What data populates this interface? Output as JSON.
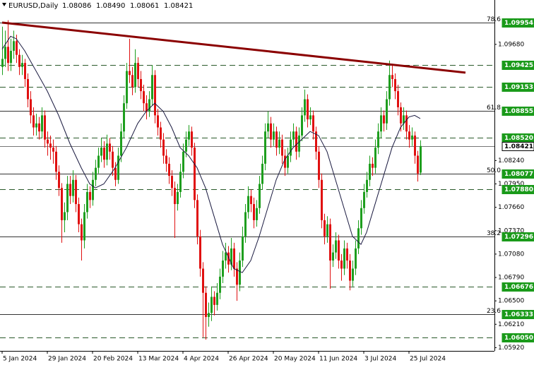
{
  "chart_data": {
    "type": "candlestick",
    "header": {
      "symbol": "EURUSD,Daily",
      "ohlc": [
        "1.08086",
        "1.08490",
        "1.08061",
        "1.08421"
      ]
    },
    "up_color": "#1e9e1e",
    "down_color": "#e01010",
    "ma_color": "#1a1a40",
    "trend_color": "#8b0000",
    "ylim": [
      1.0588,
      1.1023
    ],
    "xlim": [
      0,
      174
    ],
    "yticks": [
      {
        "value": 1.0968,
        "label": "1.09680"
      },
      {
        "value": 1.0824,
        "label": "1.08240"
      },
      {
        "value": 1.0795,
        "label": "1.07950"
      },
      {
        "value": 1.0766,
        "label": "1.07660"
      },
      {
        "value": 1.0737,
        "label": "1.07370"
      },
      {
        "value": 1.0708,
        "label": "1.07080"
      },
      {
        "value": 1.0679,
        "label": "1.06790"
      },
      {
        "value": 1.065,
        "label": "1.06500"
      },
      {
        "value": 1.0621,
        "label": "1.06210"
      },
      {
        "value": 1.0592,
        "label": "1.05920"
      }
    ],
    "xticks": [
      {
        "value": 0,
        "label": "5 Jan 2024"
      },
      {
        "value": 16,
        "label": "29 Jan 2024"
      },
      {
        "value": 32,
        "label": "20 Feb 2024"
      },
      {
        "value": 48,
        "label": "13 Mar 2024"
      },
      {
        "value": 64,
        "label": "4 Apr 2024"
      },
      {
        "value": 80,
        "label": "26 Apr 2024"
      },
      {
        "value": 96,
        "label": "20 May 2024"
      },
      {
        "value": 112,
        "label": "11 Jun 2024"
      },
      {
        "value": 128,
        "label": "3 Jul 2024"
      },
      {
        "value": 144,
        "label": "25 Jul 2024"
      }
    ],
    "levels": [
      {
        "price": 1.09954,
        "fib": "78.6",
        "style": "solid"
      },
      {
        "price": 1.09425,
        "style": "dashed"
      },
      {
        "price": 1.09153,
        "style": "dashed"
      },
      {
        "price": 1.08855,
        "fib": "61.8",
        "style": "solid"
      },
      {
        "price": {
          "value": 1.0852,
          "label": "1.08520"
        },
        "style": "dashed"
      },
      {
        "price": 1.08421,
        "style": "current"
      },
      {
        "price": 1.08077,
        "fib": "50.0",
        "style": "solid"
      },
      {
        "price": {
          "value": 1.0788,
          "label": "1.07880"
        },
        "style": "dashed"
      },
      {
        "price": 1.07296,
        "fib": "38.2",
        "style": "solid"
      },
      {
        "price": 1.06676,
        "style": "dashed"
      },
      {
        "price": 1.06333,
        "fib": "23.6",
        "style": "solid"
      },
      {
        "price": {
          "value": 1.0605,
          "label": "1.06050"
        },
        "style": "dashed"
      }
    ],
    "trendline": {
      "x": [
        0,
        164
      ],
      "values": [
        1.0995,
        1.0933
      ]
    },
    "ma": {
      "x": [
        0,
        3,
        5,
        8,
        12,
        16,
        20,
        24,
        28,
        31,
        33,
        36,
        40,
        44,
        48,
        51,
        54,
        57,
        60,
        63,
        66,
        69,
        72,
        75,
        78,
        82,
        85,
        88,
        91,
        94,
        97,
        100,
        103,
        106,
        109,
        112,
        115,
        118,
        121,
        124,
        127,
        129,
        132,
        135,
        138,
        141,
        144,
        146,
        148
      ],
      "values": [
        1.0962,
        1.0978,
        1.0975,
        1.096,
        1.0935,
        1.091,
        1.088,
        1.0845,
        1.0815,
        1.0795,
        1.079,
        1.0795,
        1.0815,
        1.084,
        1.087,
        1.0885,
        1.0895,
        1.0885,
        1.0865,
        1.084,
        1.083,
        1.0815,
        1.079,
        1.0755,
        1.072,
        1.069,
        1.0685,
        1.07,
        1.073,
        1.0765,
        1.08,
        1.0825,
        1.084,
        1.085,
        1.086,
        1.0855,
        1.0835,
        1.08,
        1.0765,
        1.073,
        1.072,
        1.0735,
        1.077,
        1.0805,
        1.084,
        1.0865,
        1.0878,
        1.088,
        1.0876
      ]
    },
    "ohlc": [
      [
        1.094,
        1.099,
        1.093,
        1.095
      ],
      [
        1.095,
        1.0985,
        1.094,
        1.0965
      ],
      [
        1.0965,
        1.0998,
        1.0935,
        1.0945
      ],
      [
        1.0945,
        1.0975,
        1.0935,
        1.096
      ],
      [
        1.096,
        1.0985,
        1.095,
        1.0972
      ],
      [
        1.0972,
        1.098,
        1.0945,
        1.0955
      ],
      [
        1.0955,
        1.0962,
        1.093,
        1.094
      ],
      [
        1.094,
        1.0955,
        1.093,
        1.0945
      ],
      [
        1.0945,
        1.095,
        1.0915,
        1.0925
      ],
      [
        1.0925,
        1.0932,
        1.089,
        1.09
      ],
      [
        1.09,
        1.091,
        1.087,
        1.088
      ],
      [
        1.088,
        1.089,
        1.0855,
        1.0865
      ],
      [
        1.0865,
        1.0882,
        1.0855,
        1.087
      ],
      [
        1.087,
        1.0878,
        1.085,
        1.086
      ],
      [
        1.086,
        1.089,
        1.0852,
        1.088
      ],
      [
        1.088,
        1.0886,
        1.084,
        1.085
      ],
      [
        1.085,
        1.086,
        1.083,
        1.0845
      ],
      [
        1.0845,
        1.0855,
        1.0825,
        1.084
      ],
      [
        1.084,
        1.085,
        1.082,
        1.0835
      ],
      [
        1.0835,
        1.0842,
        1.08,
        1.081
      ],
      [
        1.081,
        1.0818,
        1.078,
        1.079
      ],
      [
        1.079,
        1.0796,
        1.0722,
        1.075
      ],
      [
        1.075,
        1.0772,
        1.0735,
        1.076
      ],
      [
        1.076,
        1.0805,
        1.075,
        1.0795
      ],
      [
        1.0795,
        1.0805,
        1.077,
        1.078
      ],
      [
        1.078,
        1.0812,
        1.0772,
        1.08
      ],
      [
        1.08,
        1.0806,
        1.076,
        1.077
      ],
      [
        1.077,
        1.0778,
        1.0735,
        1.0745
      ],
      [
        1.0745,
        1.0752,
        1.07,
        1.0725
      ],
      [
        1.0725,
        1.077,
        1.0715,
        1.076
      ],
      [
        1.076,
        1.0795,
        1.0752,
        1.0785
      ],
      [
        1.0785,
        1.0792,
        1.0765,
        1.0775
      ],
      [
        1.0775,
        1.081,
        1.0768,
        1.08
      ],
      [
        1.08,
        1.0825,
        1.0792,
        1.0815
      ],
      [
        1.0815,
        1.084,
        1.0808,
        1.083
      ],
      [
        1.083,
        1.0852,
        1.0822,
        1.084
      ],
      [
        1.084,
        1.0848,
        1.0815,
        1.0825
      ],
      [
        1.0825,
        1.0856,
        1.0818,
        1.0845
      ],
      [
        1.0845,
        1.0852,
        1.0825,
        1.0835
      ],
      [
        1.0835,
        1.0842,
        1.0805,
        1.0815
      ],
      [
        1.0815,
        1.0822,
        1.0792,
        1.08
      ],
      [
        1.08,
        1.084,
        1.0795,
        1.083
      ],
      [
        1.083,
        1.087,
        1.0822,
        1.086
      ],
      [
        1.086,
        1.0905,
        1.0852,
        1.0895
      ],
      [
        1.0895,
        1.0945,
        1.0888,
        1.0935
      ],
      [
        1.0935,
        1.0975,
        1.092,
        1.093
      ],
      [
        1.093,
        1.094,
        1.0905,
        1.0915
      ],
      [
        1.0915,
        1.0962,
        1.0908,
        1.0945
      ],
      [
        1.0945,
        1.0952,
        1.0915,
        1.0925
      ],
      [
        1.0925,
        1.0935,
        1.09,
        1.091
      ],
      [
        1.091,
        1.0918,
        1.0885,
        1.0895
      ],
      [
        1.0895,
        1.0905,
        1.0875,
        1.0885
      ],
      [
        1.0885,
        1.091,
        1.0878,
        1.09
      ],
      [
        1.09,
        1.0942,
        1.0892,
        1.093
      ],
      [
        1.093,
        1.0936,
        1.087,
        1.088
      ],
      [
        1.088,
        1.0888,
        1.0855,
        1.0865
      ],
      [
        1.0865,
        1.0872,
        1.084,
        1.085
      ],
      [
        1.085,
        1.0858,
        1.082,
        1.083
      ],
      [
        1.083,
        1.0838,
        1.081,
        1.082
      ],
      [
        1.082,
        1.0828,
        1.0795,
        1.0805
      ],
      [
        1.0805,
        1.0812,
        1.078,
        1.079
      ],
      [
        1.079,
        1.0798,
        1.0728,
        1.077
      ],
      [
        1.077,
        1.0795,
        1.0762,
        1.0785
      ],
      [
        1.0785,
        1.082,
        1.0778,
        1.081
      ],
      [
        1.081,
        1.0845,
        1.0802,
        1.0835
      ],
      [
        1.0835,
        1.086,
        1.0828,
        1.085
      ],
      [
        1.085,
        1.0868,
        1.0842,
        1.086
      ],
      [
        1.086,
        1.0866,
        1.083,
        1.084
      ],
      [
        1.084,
        1.0846,
        1.0765,
        1.0775
      ],
      [
        1.0775,
        1.0782,
        1.072,
        1.073
      ],
      [
        1.073,
        1.0738,
        1.068,
        1.069
      ],
      [
        1.069,
        1.0698,
        1.0605,
        1.066
      ],
      [
        1.066,
        1.0668,
        1.0602,
        1.063
      ],
      [
        1.063,
        1.0648,
        1.0618,
        1.0635
      ],
      [
        1.0635,
        1.0668,
        1.0625,
        1.0655
      ],
      [
        1.0655,
        1.0662,
        1.0632,
        1.0645
      ],
      [
        1.0645,
        1.0672,
        1.0638,
        1.066
      ],
      [
        1.066,
        1.069,
        1.0652,
        1.068
      ],
      [
        1.068,
        1.0712,
        1.0672,
        1.07
      ],
      [
        1.07,
        1.0722,
        1.069,
        1.071
      ],
      [
        1.071,
        1.0718,
        1.0685,
        1.0695
      ],
      [
        1.0695,
        1.0728,
        1.0688,
        1.0715
      ],
      [
        1.0715,
        1.0722,
        1.068,
        1.069
      ],
      [
        1.069,
        1.0698,
        1.065,
        1.067
      ],
      [
        1.067,
        1.071,
        1.0662,
        1.07
      ],
      [
        1.07,
        1.0742,
        1.0692,
        1.073
      ],
      [
        1.073,
        1.077,
        1.0722,
        1.076
      ],
      [
        1.076,
        1.0792,
        1.0752,
        1.078
      ],
      [
        1.078,
        1.0788,
        1.076,
        1.077
      ],
      [
        1.077,
        1.0778,
        1.074,
        1.075
      ],
      [
        1.075,
        1.0775,
        1.0742,
        1.0765
      ],
      [
        1.0765,
        1.0805,
        1.0758,
        1.0795
      ],
      [
        1.0795,
        1.083,
        1.0788,
        1.082
      ],
      [
        1.082,
        1.087,
        1.0812,
        1.086
      ],
      [
        1.086,
        1.0885,
        1.0852,
        1.087
      ],
      [
        1.087,
        1.0878,
        1.084,
        1.085
      ],
      [
        1.085,
        1.087,
        1.0842,
        1.086
      ],
      [
        1.086,
        1.0866,
        1.083,
        1.084
      ],
      [
        1.084,
        1.086,
        1.0832,
        1.085
      ],
      [
        1.085,
        1.0856,
        1.082,
        1.083
      ],
      [
        1.083,
        1.0838,
        1.0805,
        1.0815
      ],
      [
        1.0815,
        1.084,
        1.0808,
        1.083
      ],
      [
        1.083,
        1.086,
        1.0822,
        1.085
      ],
      [
        1.085,
        1.087,
        1.0842,
        1.086
      ],
      [
        1.086,
        1.0866,
        1.0825,
        1.0835
      ],
      [
        1.0835,
        1.0865,
        1.0828,
        1.0855
      ],
      [
        1.0855,
        1.089,
        1.0848,
        1.088
      ],
      [
        1.088,
        1.0912,
        1.0872,
        1.09
      ],
      [
        1.09,
        1.0906,
        1.0865,
        1.0875
      ],
      [
        1.0875,
        1.089,
        1.0868,
        1.088
      ],
      [
        1.088,
        1.0886,
        1.085,
        1.086
      ],
      [
        1.086,
        1.0866,
        1.0825,
        1.0835
      ],
      [
        1.0835,
        1.0842,
        1.079,
        1.08
      ],
      [
        1.08,
        1.0808,
        1.074,
        1.075
      ],
      [
        1.075,
        1.0758,
        1.072,
        1.073
      ],
      [
        1.073,
        1.0755,
        1.0722,
        1.0745
      ],
      [
        1.0745,
        1.0752,
        1.0665,
        1.07
      ],
      [
        1.07,
        1.072,
        1.0692,
        1.071
      ],
      [
        1.071,
        1.0735,
        1.0702,
        1.0725
      ],
      [
        1.0725,
        1.0732,
        1.069,
        1.07
      ],
      [
        1.07,
        1.0708,
        1.0675,
        1.069
      ],
      [
        1.069,
        1.0725,
        1.0682,
        1.0715
      ],
      [
        1.0715,
        1.0722,
        1.069,
        1.07
      ],
      [
        1.07,
        1.0708,
        1.0663,
        1.0675
      ],
      [
        1.0675,
        1.07,
        1.0668,
        1.069
      ],
      [
        1.069,
        1.0725,
        1.0682,
        1.0715
      ],
      [
        1.0715,
        1.075,
        1.0708,
        1.074
      ],
      [
        1.074,
        1.0775,
        1.0732,
        1.0765
      ],
      [
        1.0765,
        1.0795,
        1.0758,
        1.0785
      ],
      [
        1.0785,
        1.081,
        1.0778,
        1.08
      ],
      [
        1.08,
        1.083,
        1.0792,
        1.082
      ],
      [
        1.082,
        1.0828,
        1.0805,
        1.0815
      ],
      [
        1.0815,
        1.085,
        1.0808,
        1.084
      ],
      [
        1.084,
        1.087,
        1.0832,
        1.086
      ],
      [
        1.086,
        1.089,
        1.0852,
        1.088
      ],
      [
        1.088,
        1.0886,
        1.086,
        1.087
      ],
      [
        1.087,
        1.091,
        1.0862,
        1.09
      ],
      [
        1.09,
        1.0948,
        1.0892,
        1.093
      ],
      [
        1.093,
        1.0944,
        1.0915,
        1.0925
      ],
      [
        1.0925,
        1.0932,
        1.09,
        1.091
      ],
      [
        1.091,
        1.0918,
        1.088,
        1.089
      ],
      [
        1.089,
        1.0896,
        1.086,
        1.087
      ],
      [
        1.087,
        1.089,
        1.0862,
        1.088
      ],
      [
        1.088,
        1.0886,
        1.085,
        1.086
      ],
      [
        1.086,
        1.0868,
        1.084,
        1.085
      ],
      [
        1.085,
        1.0865,
        1.0842,
        1.0855
      ],
      [
        1.0855,
        1.086,
        1.082,
        1.083
      ],
      [
        1.083,
        1.0836,
        1.0798,
        1.0808
      ],
      [
        1.0809,
        1.0849,
        1.0806,
        1.0842
      ]
    ]
  }
}
